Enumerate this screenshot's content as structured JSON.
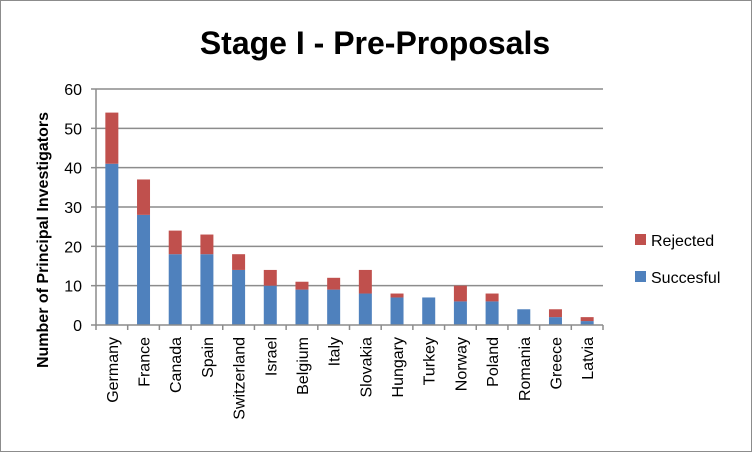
{
  "chart_data": {
    "type": "bar",
    "stacked": true,
    "title": "Stage I - Pre-Proposals",
    "xlabel": "",
    "ylabel": "Number of Principal Investigators",
    "ylim": [
      0,
      60
    ],
    "yticks": [
      0,
      10,
      20,
      30,
      40,
      50,
      60
    ],
    "grid": true,
    "legend_position": "right",
    "categories": [
      "Germany",
      "France",
      "Canada",
      "Spain",
      "Switzerland",
      "Israel",
      "Belgium",
      "Italy",
      "Slovakia",
      "Hungary",
      "Turkey",
      "Norway",
      "Poland",
      "Romania",
      "Greece",
      "Latvia"
    ],
    "series": [
      {
        "name": "Succesful",
        "color": "#4f81bd",
        "values": [
          41,
          28,
          18,
          18,
          14,
          10,
          9,
          9,
          8,
          7,
          7,
          6,
          6,
          4,
          2,
          1
        ]
      },
      {
        "name": "Rejected",
        "color": "#c0504d",
        "values": [
          13,
          9,
          6,
          5,
          4,
          4,
          2,
          3,
          6,
          1,
          0,
          4,
          2,
          0,
          2,
          1
        ]
      }
    ],
    "legend_order": [
      "Rejected",
      "Succesful"
    ]
  }
}
